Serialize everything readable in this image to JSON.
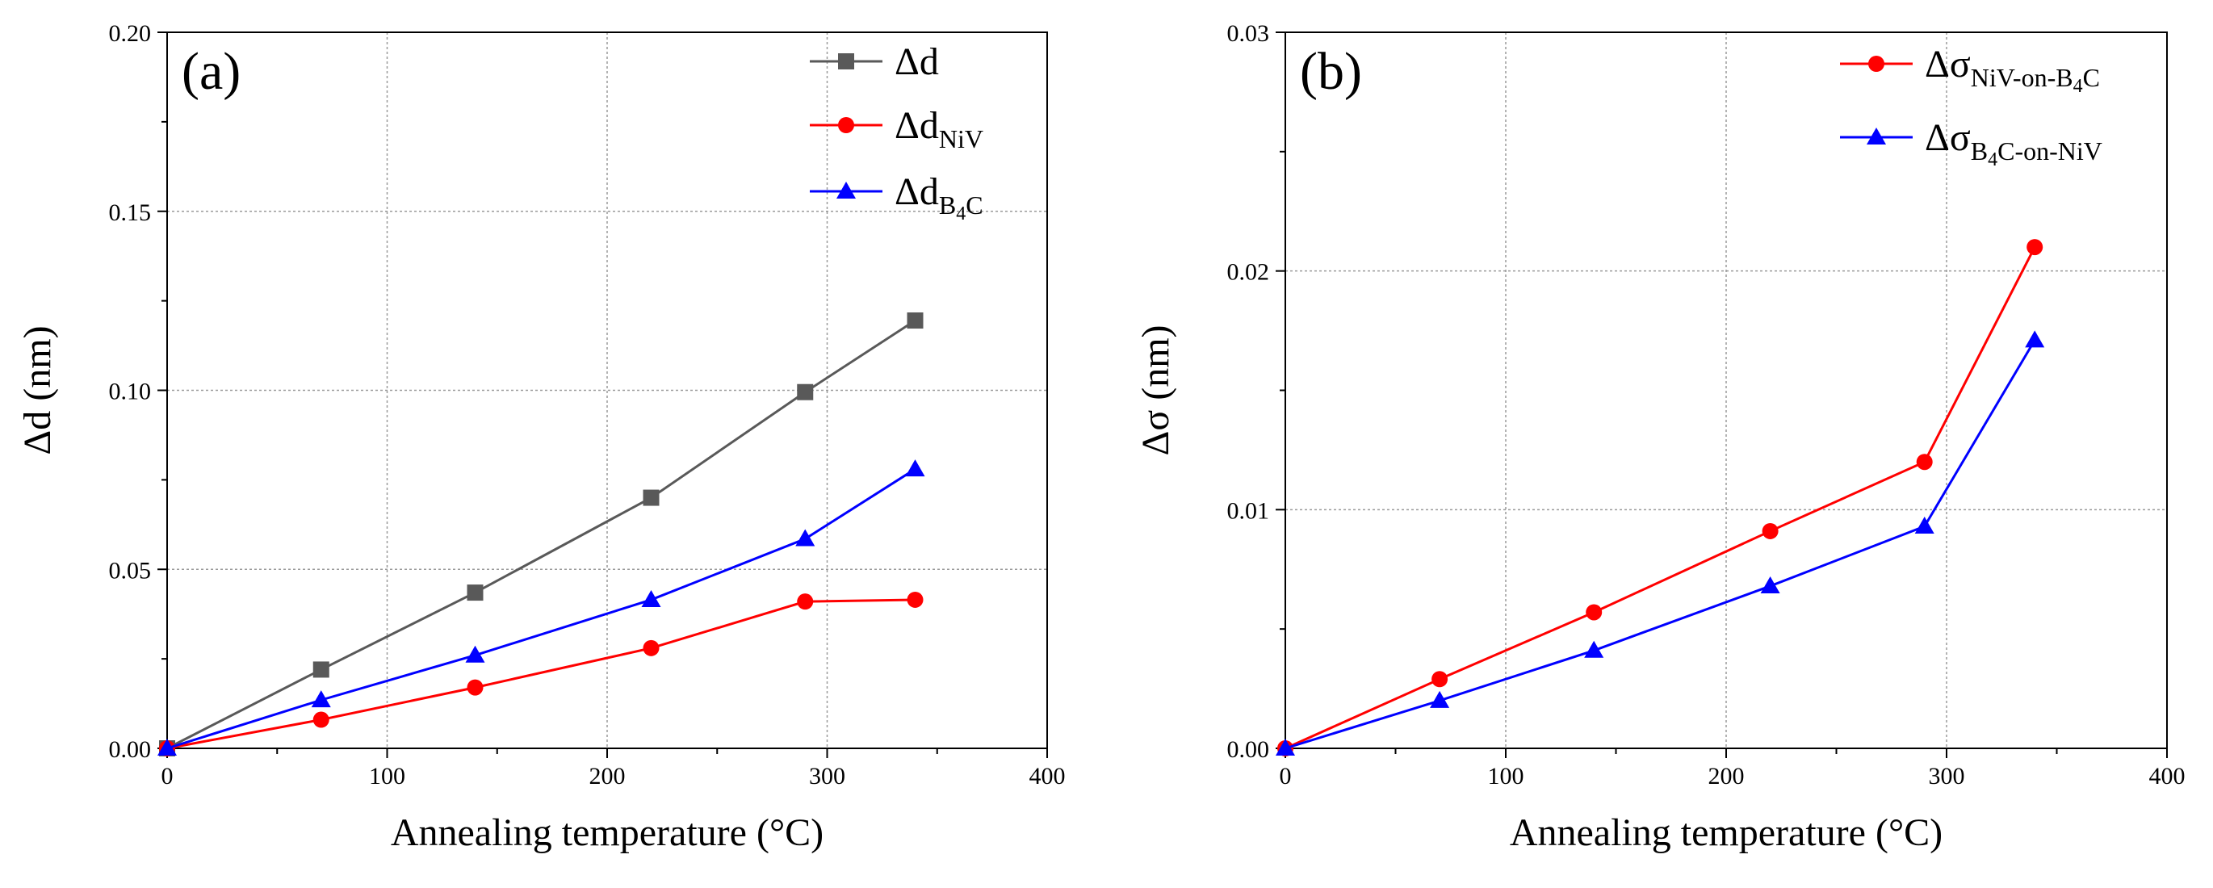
{
  "chart_data": [
    {
      "type": "line",
      "panel_label": "(a)",
      "xlabel": "Annealing temperature (°C)",
      "ylabel": "Δd (nm)",
      "xlim": [
        0,
        400
      ],
      "ylim": [
        0,
        0.2
      ],
      "xticks": [
        "0",
        "100",
        "200",
        "300",
        "400"
      ],
      "yticks": [
        "0.00",
        "0.05",
        "0.10",
        "0.15",
        "0.20"
      ],
      "grid": true,
      "legend_position": "top-right",
      "x": [
        0,
        70,
        140,
        220,
        290,
        340
      ],
      "series": [
        {
          "name": "Δd",
          "color": "#595959",
          "marker": "square",
          "values": [
            0,
            0.022,
            0.0435,
            0.07,
            0.0995,
            0.1195
          ]
        },
        {
          "name": "ΔdNiV",
          "color": "#ff0000",
          "marker": "circle",
          "values": [
            0,
            0.008,
            0.017,
            0.028,
            0.041,
            0.0415
          ]
        },
        {
          "name": "ΔdB4C",
          "color": "#0000ff",
          "marker": "triangle",
          "values": [
            0,
            0.0135,
            0.026,
            0.0415,
            0.0585,
            0.078
          ]
        }
      ]
    },
    {
      "type": "line",
      "panel_label": "(b)",
      "xlabel": "Annealing temperature (°C)",
      "ylabel": "Δσ (nm)",
      "xlim": [
        0,
        400
      ],
      "ylim": [
        0,
        0.03
      ],
      "xticks": [
        "0",
        "100",
        "200",
        "300",
        "400"
      ],
      "yticks": [
        "0.00",
        "0.01",
        "0.02",
        "0.03"
      ],
      "grid": true,
      "legend_position": "top-right",
      "x": [
        0,
        70,
        140,
        220,
        290,
        340
      ],
      "series": [
        {
          "name": "ΔσNiV-on-B4C",
          "color": "#ff0000",
          "marker": "circle",
          "values": [
            0,
            0.0029,
            0.0057,
            0.0091,
            0.012,
            0.021
          ]
        },
        {
          "name": "ΔσB4C-on-NiV",
          "color": "#0000ff",
          "marker": "triangle",
          "values": [
            0,
            0.002,
            0.0041,
            0.0068,
            0.0093,
            0.0171
          ]
        }
      ]
    }
  ],
  "legend_rich": [
    [
      {
        "base": "Δd",
        "sub": "",
        "subsub": "",
        "rest": ""
      },
      {
        "base": "Δd",
        "sub": "NiV",
        "subsub": "",
        "rest": ""
      },
      {
        "base": "Δd",
        "sub": "B",
        "subsub": "4",
        "rest": "C"
      }
    ],
    [
      {
        "base": "Δσ",
        "sub": "NiV-on-B",
        "subsub": "4",
        "rest": "C"
      },
      {
        "base": "Δσ",
        "sub": "B",
        "subsub": "4",
        "rest": "C-on-NiV"
      }
    ]
  ]
}
